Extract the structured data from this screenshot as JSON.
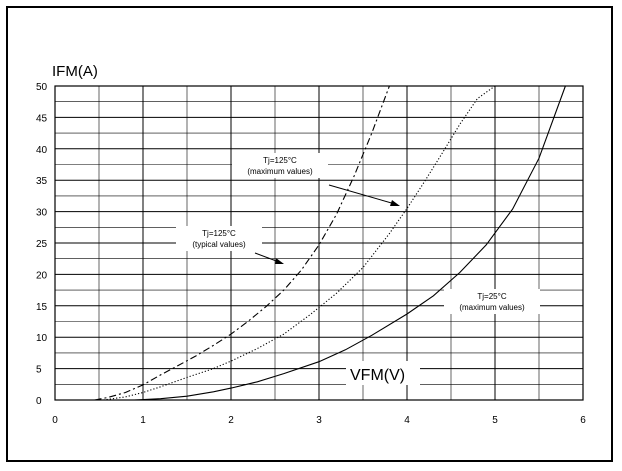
{
  "chart_data": {
    "type": "line",
    "title": "",
    "ylabel": "IFM(A)",
    "xlabel": "VFM(V)",
    "xlim": [
      0,
      6
    ],
    "ylim": [
      0,
      50
    ],
    "xticks": [
      0,
      1,
      2,
      3,
      4,
      5,
      6
    ],
    "yticks": [
      0,
      5,
      10,
      15,
      20,
      25,
      30,
      35,
      40,
      45,
      50
    ],
    "grid": true,
    "series": [
      {
        "name": "Tj=125°C (typical values)",
        "style": "dashdot",
        "x": [
          0.45,
          0.6,
          0.8,
          1.0,
          1.2,
          1.4,
          1.6,
          1.8,
          2.0,
          2.2,
          2.4,
          2.6,
          2.8,
          3.0,
          3.2,
          3.4,
          3.6,
          3.8
        ],
        "y": [
          0,
          0.4,
          1.2,
          2.4,
          4.0,
          5.5,
          7.0,
          8.7,
          10.5,
          12.6,
          14.9,
          17.5,
          20.7,
          24.7,
          29.6,
          35.7,
          42.5,
          50
        ]
      },
      {
        "name": "Tj=125°C (maximum values)",
        "style": "dotted",
        "x": [
          0.55,
          0.8,
          1.0,
          1.2,
          1.5,
          1.8,
          2.0,
          2.3,
          2.6,
          2.9,
          3.2,
          3.5,
          3.8,
          4.0,
          4.2,
          4.4,
          4.6,
          4.8,
          5.0
        ],
        "y": [
          0,
          0.5,
          1.2,
          2.1,
          3.6,
          5.0,
          6.2,
          8.2,
          10.5,
          13.6,
          17.0,
          21.1,
          26.5,
          30.5,
          34.8,
          39.3,
          43.9,
          48.0,
          50
        ]
      },
      {
        "name": "Tj=25°C (maximum values)",
        "style": "solid",
        "x": [
          0.9,
          1.2,
          1.5,
          1.8,
          2.0,
          2.3,
          2.6,
          3.0,
          3.3,
          3.6,
          4.0,
          4.3,
          4.6,
          4.9,
          5.2,
          5.5,
          5.8
        ],
        "y": [
          0,
          0.2,
          0.6,
          1.3,
          1.9,
          2.9,
          4.2,
          6.1,
          8.0,
          10.3,
          13.7,
          16.6,
          20.3,
          24.7,
          30.4,
          38.5,
          50
        ]
      }
    ],
    "annotations": [
      {
        "line1": "Tj=125°C",
        "line2": "(maximum values)"
      },
      {
        "line1": "Tj=125°C",
        "line2": "(typical values)"
      },
      {
        "line1": "Tj=25°C",
        "line2": "(maximum values)"
      }
    ]
  }
}
